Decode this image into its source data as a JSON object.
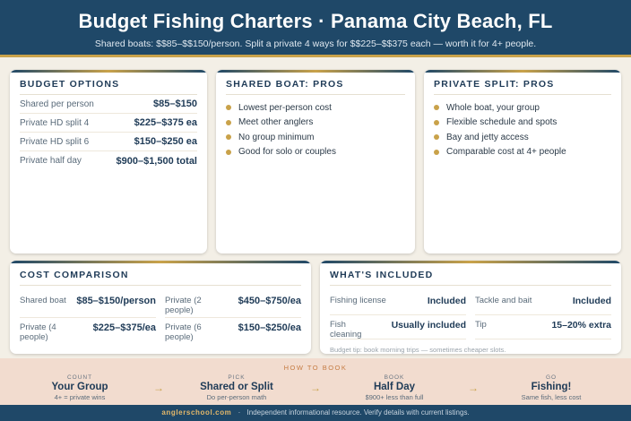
{
  "header": {
    "title": "Budget Fishing Charters · Panama City Beach, FL",
    "subtitle": "Shared boats: $$85–$$150/person. Split a private 4 ways for $$225–$$375 each — worth it for 4+ people."
  },
  "budget_options": {
    "title": "BUDGET OPTIONS",
    "rows": [
      {
        "label": "Shared per person",
        "value": "$85–$150"
      },
      {
        "label": "Private HD split 4",
        "value": "$225–$375 ea"
      },
      {
        "label": "Private HD split 6",
        "value": "$150–$250 ea"
      },
      {
        "label": "Private half day",
        "value": "$900–$1,500 total"
      }
    ]
  },
  "shared_pros": {
    "title": "SHARED BOAT: PROS",
    "items": [
      "Lowest per-person cost",
      "Meet other anglers",
      "No group minimum",
      "Good for solo or couples"
    ]
  },
  "private_pros": {
    "title": "PRIVATE SPLIT: PROS",
    "items": [
      "Whole boat, your group",
      "Flexible schedule and spots",
      "Bay and jetty access",
      "Comparable cost at 4+ people"
    ]
  },
  "cost_comparison": {
    "title": "COST COMPARISON",
    "cells": [
      {
        "label": "Shared boat",
        "value": "$85–$150/person"
      },
      {
        "label": "Private (2 people)",
        "value": "$450–$750/ea"
      },
      {
        "label": "Private (4 people)",
        "value": "$225–$375/ea"
      },
      {
        "label": "Private (6 people)",
        "value": "$150–$250/ea"
      }
    ]
  },
  "whats_included": {
    "title": "WHAT'S INCLUDED",
    "cells": [
      {
        "label": "Fishing license",
        "value": "Included"
      },
      {
        "label": "Tackle and bait",
        "value": "Included"
      },
      {
        "label": "Fish cleaning",
        "value": "Usually included"
      },
      {
        "label": "Tip",
        "value": "15–20% extra"
      }
    ],
    "tip": "Budget tip: book morning trips — sometimes cheaper slots."
  },
  "how_to_book": {
    "label": "HOW TO BOOK",
    "steps": [
      {
        "small": "COUNT",
        "big": "Your Group",
        "note": "4+ = private wins"
      },
      {
        "small": "PICK",
        "big": "Shared or Split",
        "note": "Do per-person math"
      },
      {
        "small": "BOOK",
        "big": "Half Day",
        "note": "$900+ less than full"
      },
      {
        "small": "GO",
        "big": "Fishing!",
        "note": "Same fish, less cost"
      }
    ],
    "arrow": "→"
  },
  "footer": {
    "site": "anglerschool.com",
    "separator": "·",
    "text": "Independent informational resource. Verify details with current listings."
  },
  "colors": {
    "header_bg": "#1f4868",
    "accent_gold": "#c9a24a",
    "page_bg": "#f3efe6",
    "howto_bg": "#f2dccf"
  }
}
